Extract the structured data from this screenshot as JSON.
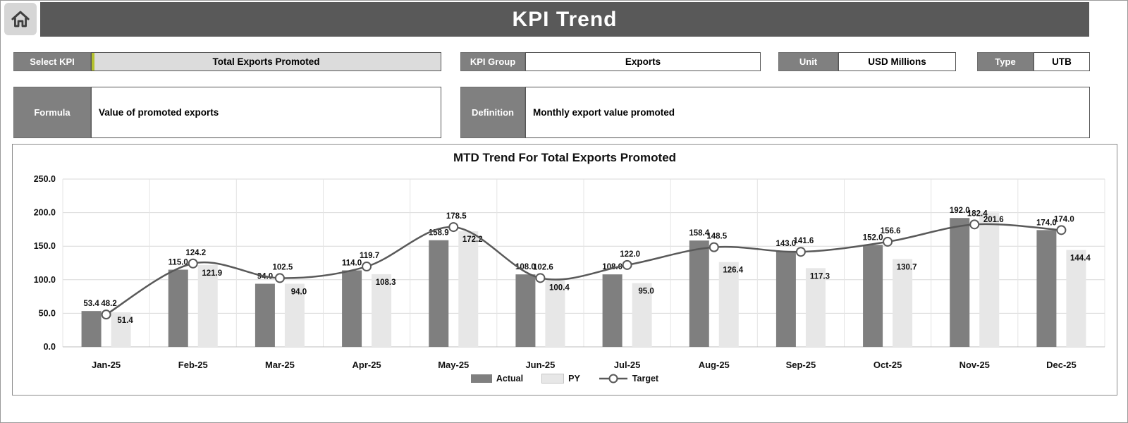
{
  "header": {
    "title": "KPI Trend"
  },
  "controls": {
    "select_kpi": {
      "label": "Select KPI",
      "value": "Total Exports Promoted",
      "accent_color": "#b5c22e"
    },
    "kpi_group": {
      "label": "KPI Group",
      "value": "Exports"
    },
    "unit": {
      "label": "Unit",
      "value": "USD Millions"
    },
    "type": {
      "label": "Type",
      "value": "UTB"
    },
    "formula": {
      "label": "Formula",
      "value": "Value of promoted exports"
    },
    "definition": {
      "label": "Definition",
      "value": "Monthly export value promoted"
    }
  },
  "chart_data": {
    "type": "bar",
    "title": "MTD Trend For Total Exports Promoted",
    "categories": [
      "Jan-25",
      "Feb-25",
      "Mar-25",
      "Apr-25",
      "May-25",
      "Jun-25",
      "Jul-25",
      "Aug-25",
      "Sep-25",
      "Oct-25",
      "Nov-25",
      "Dec-25"
    ],
    "series": [
      {
        "name": "Actual",
        "type": "bar",
        "color": "#7f7f7f",
        "values": [
          53.4,
          115.0,
          94.0,
          114.0,
          158.9,
          108.0,
          108.0,
          158.4,
          143.0,
          152.0,
          192.0,
          174.0
        ]
      },
      {
        "name": "PY",
        "type": "bar",
        "color": "#e7e7e7",
        "values": [
          51.4,
          121.9,
          94.0,
          108.3,
          172.2,
          100.4,
          95.0,
          126.4,
          117.3,
          130.7,
          201.6,
          144.4
        ]
      },
      {
        "name": "Target",
        "type": "line",
        "color": "#595959",
        "values": [
          48.2,
          124.2,
          102.5,
          119.7,
          178.5,
          102.6,
          122.0,
          148.5,
          141.6,
          156.6,
          182.4,
          174.0
        ]
      }
    ],
    "xlabel": "",
    "ylabel": "",
    "ylim": [
      0,
      250
    ],
    "yticks": [
      0,
      50,
      100,
      150,
      200,
      250
    ],
    "grid": true,
    "legend_position": "bottom"
  }
}
